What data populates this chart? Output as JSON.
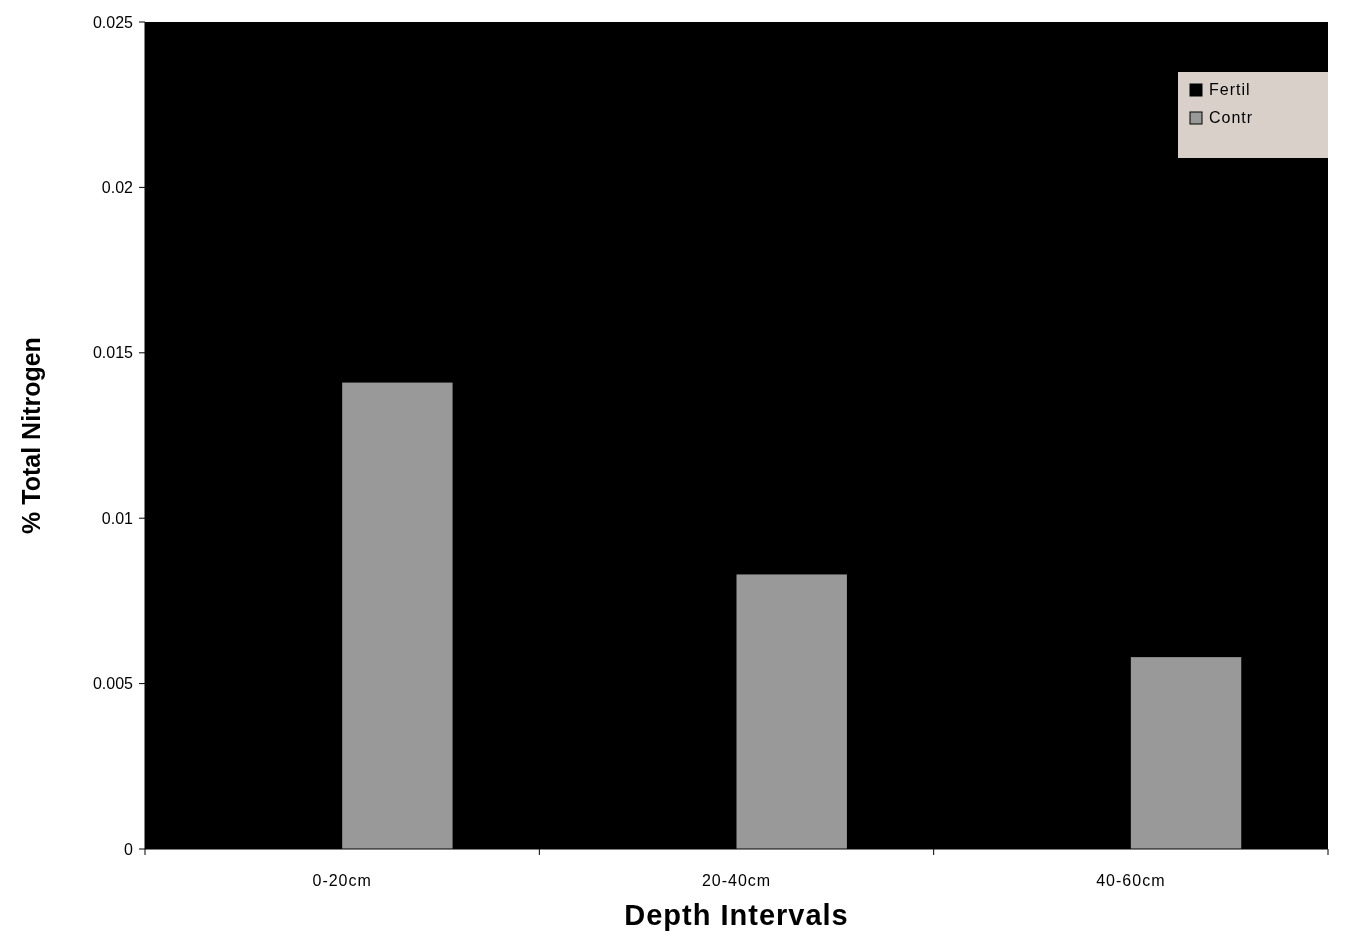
{
  "chart_data": {
    "type": "bar",
    "xlabel": "Depth Intervals",
    "ylabel": "% Total Nitrogen",
    "categories": [
      "0-20cm",
      "20-40cm",
      "40-60cm"
    ],
    "series": [
      {
        "name": "Fertil",
        "color": "#000000",
        "values": [
          null,
          null,
          null
        ]
      },
      {
        "name": "Contr",
        "color": "#999999",
        "values": [
          0.0141,
          0.0083,
          0.0058
        ]
      }
    ],
    "ylim": [
      0,
      0.025
    ],
    "yticks": [
      0,
      0.005,
      0.01,
      0.015,
      0.02,
      0.025
    ],
    "grid": false,
    "legend": "top right"
  }
}
